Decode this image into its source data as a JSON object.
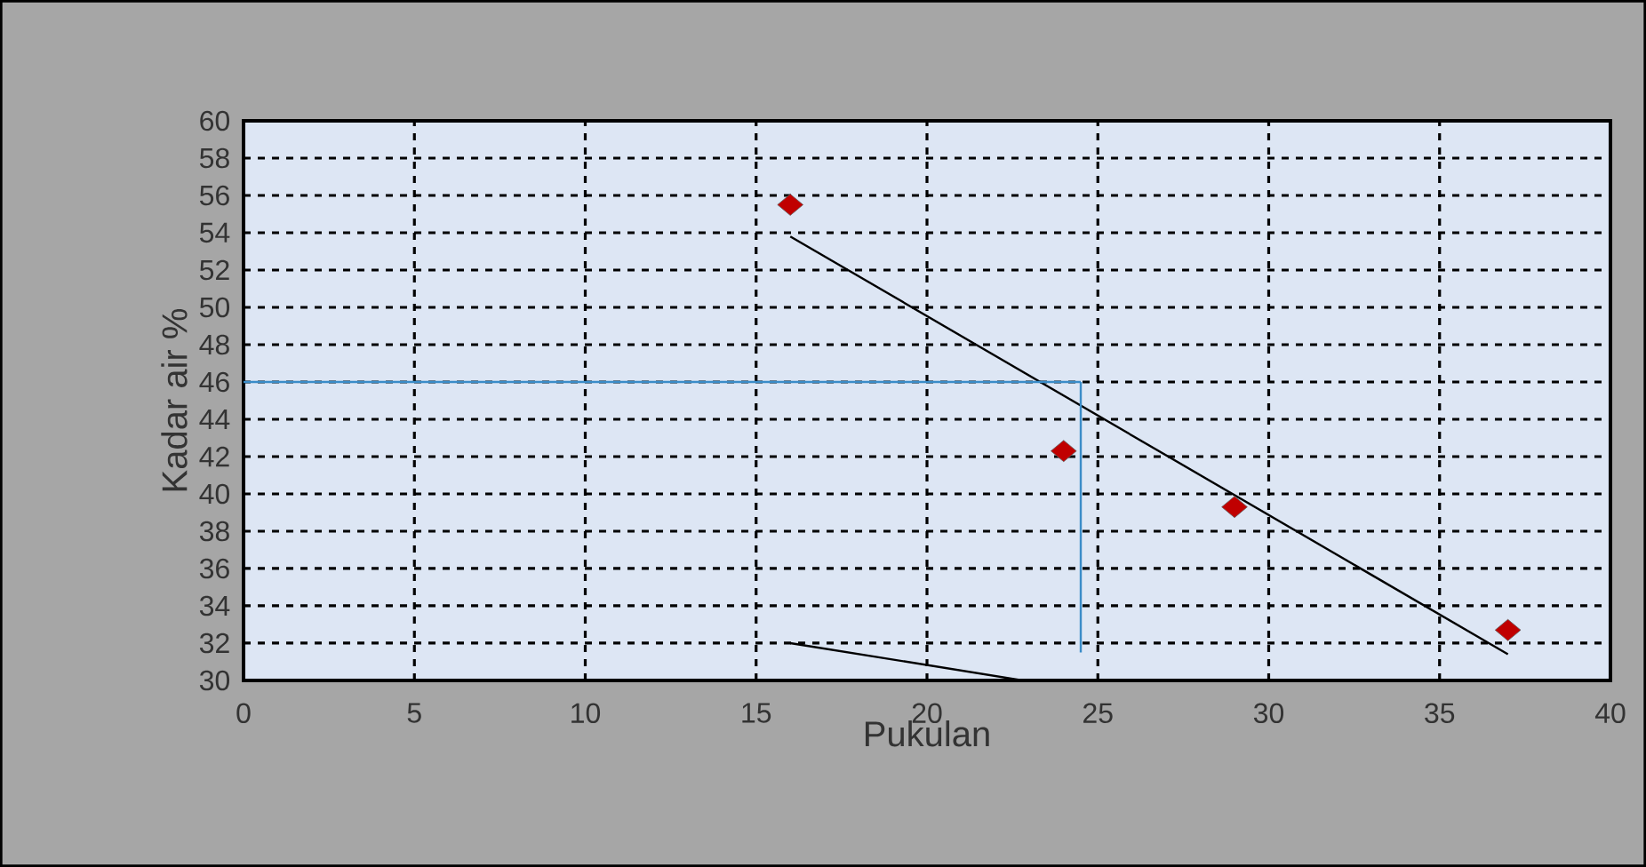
{
  "chart_data": {
    "type": "scatter",
    "xlabel": "Pukulan",
    "ylabel": "Kadar air %",
    "xlim": [
      0,
      40
    ],
    "ylim": [
      30,
      60
    ],
    "xticks": [
      0,
      5,
      10,
      15,
      20,
      25,
      30,
      35,
      40
    ],
    "yticks": [
      30,
      32,
      34,
      36,
      38,
      40,
      42,
      44,
      46,
      48,
      50,
      52,
      54,
      56,
      58,
      60
    ],
    "grid": true,
    "series": [
      {
        "color": "#c00000",
        "marker": "diamond",
        "x": [
          16,
          24,
          29,
          37
        ],
        "values": [
          55.5,
          42.3,
          39.3,
          32.7
        ]
      },
      {
        "type": "line",
        "color": "#000000",
        "marker": "none",
        "x": [
          16,
          37
        ],
        "values": [
          53.8,
          31.4
        ]
      },
      {
        "type": "line",
        "color": "#000000",
        "marker": "none",
        "x": [
          16,
          22.8
        ],
        "values": [
          32,
          30
        ]
      },
      {
        "type": "line",
        "color": "#3a8cc8",
        "marker": "none",
        "x": [
          0,
          24.5
        ],
        "values": [
          46,
          46
        ]
      },
      {
        "type": "line",
        "color": "#3a8cc8",
        "marker": "none",
        "x": [
          24.5,
          24.5
        ],
        "values": [
          46,
          31.5
        ]
      }
    ]
  }
}
